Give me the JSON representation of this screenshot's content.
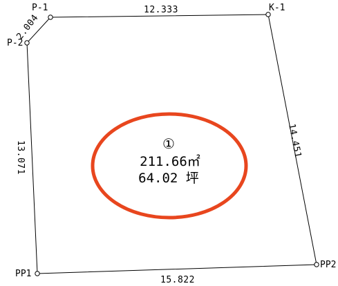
{
  "points": {
    "p1": "P-1",
    "p2": "P-2",
    "k1": "K-1",
    "pp1": "PP1",
    "pp2": "PP2"
  },
  "lengths": {
    "p1_k1": "12.333",
    "p1_p2": "2.004",
    "k1_pp2": "14.451",
    "p2_pp1": "13.071",
    "pp1_pp2": "15.822"
  },
  "parcel": {
    "number": "①",
    "area_m2": "211.66㎡",
    "area_tsubo": "64.02 坪"
  },
  "colors": {
    "highlight": "#e8461e",
    "line": "#000000"
  }
}
